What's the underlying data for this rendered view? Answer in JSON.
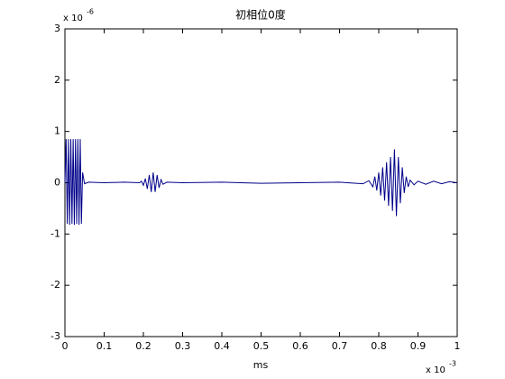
{
  "chart_data": {
    "type": "line",
    "title": "初相位0度",
    "x_label": "ms",
    "x_multiplier": {
      "base": "x 10",
      "exponent": "-3"
    },
    "y_multiplier": {
      "base": "x 10",
      "exponent": "-6"
    },
    "xlim": [
      0,
      1
    ],
    "ylim": [
      -3,
      3
    ],
    "xticks": [
      0,
      0.1,
      0.2,
      0.3,
      0.4,
      0.5,
      0.6,
      0.7,
      0.8,
      0.9,
      1
    ],
    "yticks": [
      -3,
      -2,
      -1,
      0,
      1,
      2,
      3
    ],
    "x": [
      0,
      0.003,
      0.006,
      0.009,
      0.012,
      0.015,
      0.018,
      0.021,
      0.024,
      0.027,
      0.03,
      0.033,
      0.036,
      0.039,
      0.042,
      0.045,
      0.05,
      0.06,
      0.1,
      0.15,
      0.19,
      0.195,
      0.2,
      0.205,
      0.21,
      0.215,
      0.22,
      0.225,
      0.23,
      0.235,
      0.24,
      0.245,
      0.25,
      0.26,
      0.3,
      0.4,
      0.5,
      0.6,
      0.7,
      0.76,
      0.775,
      0.785,
      0.79,
      0.795,
      0.8,
      0.805,
      0.81,
      0.815,
      0.82,
      0.825,
      0.83,
      0.835,
      0.84,
      0.845,
      0.85,
      0.855,
      0.86,
      0.865,
      0.87,
      0.875,
      0.88,
      0.89,
      0.9,
      0.92,
      0.94,
      0.96,
      0.98,
      1
    ],
    "series": [
      {
        "color": "#00008b",
        "values": [
          0,
          0.85,
          -0.8,
          0.85,
          -0.82,
          0.85,
          -0.8,
          0.85,
          -0.82,
          0.85,
          -0.8,
          0.85,
          -0.82,
          0.85,
          -0.8,
          0.2,
          -0.02,
          0.01,
          0,
          0.01,
          0,
          0.03,
          -0.05,
          0.08,
          -0.12,
          0.15,
          -0.18,
          0.2,
          -0.18,
          0.15,
          -0.1,
          0.06,
          -0.03,
          0.01,
          0,
          0.01,
          -0.01,
          0,
          0.01,
          -0.02,
          0.04,
          -0.08,
          0.12,
          -0.15,
          0.2,
          -0.25,
          0.3,
          -0.35,
          0.4,
          -0.45,
          0.5,
          -0.55,
          0.65,
          -0.65,
          0.5,
          -0.4,
          0.3,
          -0.2,
          0.12,
          -0.08,
          0.05,
          -0.04,
          0.03,
          -0.03,
          0.03,
          -0.02,
          0.02,
          0
        ]
      }
    ]
  }
}
